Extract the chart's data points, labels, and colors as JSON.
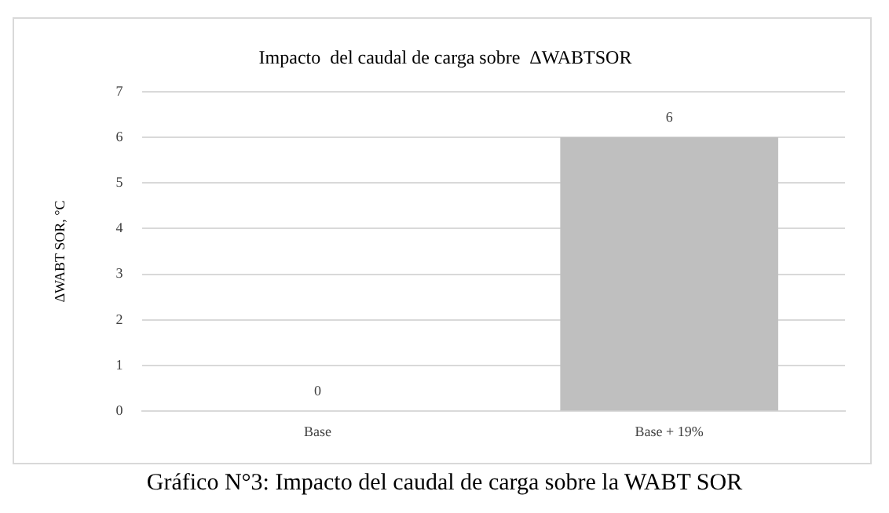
{
  "chart_data": {
    "type": "bar",
    "title": "Impacto  del caudal de carga sobre  ΔWABTSOR",
    "ylabel": "ΔWABT SOR, °C",
    "categories": [
      "Base",
      "Base + 19%"
    ],
    "values": [
      0,
      6
    ],
    "color": "#bfbfbf",
    "ylim": [
      0,
      7
    ],
    "yticks": [
      0,
      1,
      2,
      3,
      4,
      5,
      6,
      7
    ],
    "grid": "y",
    "data_labels": true,
    "legend": false,
    "annotations": [
      "Gráfico N°3: Impacto del caudal de carga sobre la WABT SOR"
    ]
  }
}
